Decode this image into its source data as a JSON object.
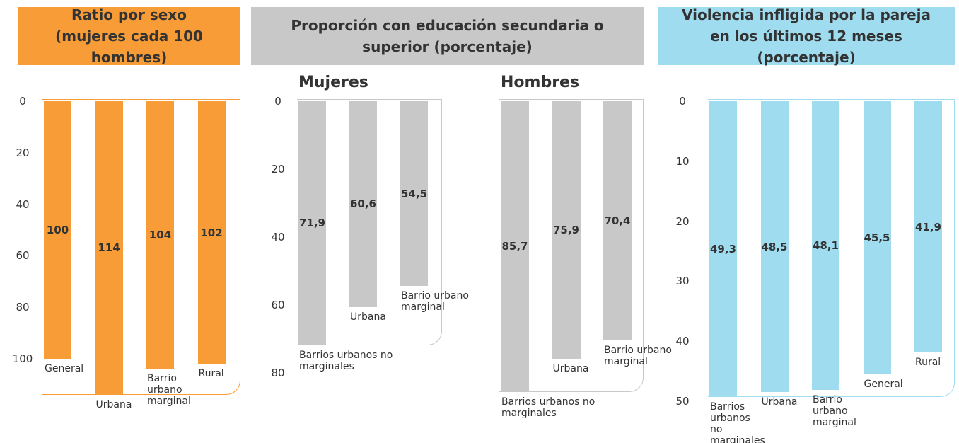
{
  "chart_data": [
    {
      "type": "bar",
      "title": "Ratio por sexo (mujeres cada 100 hombres)",
      "categories": [
        "General",
        "Urbana",
        "Barrio urbano marginal",
        "Rural"
      ],
      "values": [
        100,
        114,
        104,
        102
      ],
      "color": "#f79c36",
      "ylim": [
        0,
        116
      ],
      "yticks": [
        0,
        20,
        40,
        60,
        80,
        100
      ],
      "y_inverted": true
    },
    {
      "type": "bar",
      "title": "Proporción con educación secundaria o superior (porcentaje)",
      "subtitle": "Mujeres",
      "categories": [
        "Barrios urbanos no marginales",
        "Urbana",
        "Barrio urbano marginal"
      ],
      "values": [
        71.9,
        60.6,
        54.5
      ],
      "value_labels": [
        "71,9",
        "60,6",
        "54,5"
      ],
      "color": "#c8c8c8",
      "ylim": [
        0,
        88
      ],
      "yticks": [
        0,
        20,
        40,
        60,
        80
      ],
      "y_inverted": true
    },
    {
      "type": "bar",
      "subtitle": "Hombres",
      "categories": [
        "Barrios urbanos no marginales",
        "Urbana",
        "Barrio urbano marginal"
      ],
      "values": [
        85.7,
        75.9,
        70.4
      ],
      "value_labels": [
        "85,7",
        "75,9",
        "70,4"
      ],
      "color": "#c8c8c8",
      "ylim": [
        0,
        88
      ],
      "y_inverted": true
    },
    {
      "type": "bar",
      "title": "Violencia infligida por la pareja en los últimos 12 meses (porcentaje)",
      "categories": [
        "Barrios urbanos no marginales",
        "Urbana",
        "Barrio urbano marginal",
        "General",
        "Rural"
      ],
      "values": [
        49.3,
        48.5,
        48.1,
        45.5,
        41.9
      ],
      "value_labels": [
        "49,3",
        "48,5",
        "48,1",
        "45,5",
        "41,9"
      ],
      "color": "#a0dcef",
      "ylim": [
        0,
        50
      ],
      "yticks": [
        0,
        10,
        20,
        30,
        40,
        50
      ],
      "y_inverted": true
    }
  ]
}
